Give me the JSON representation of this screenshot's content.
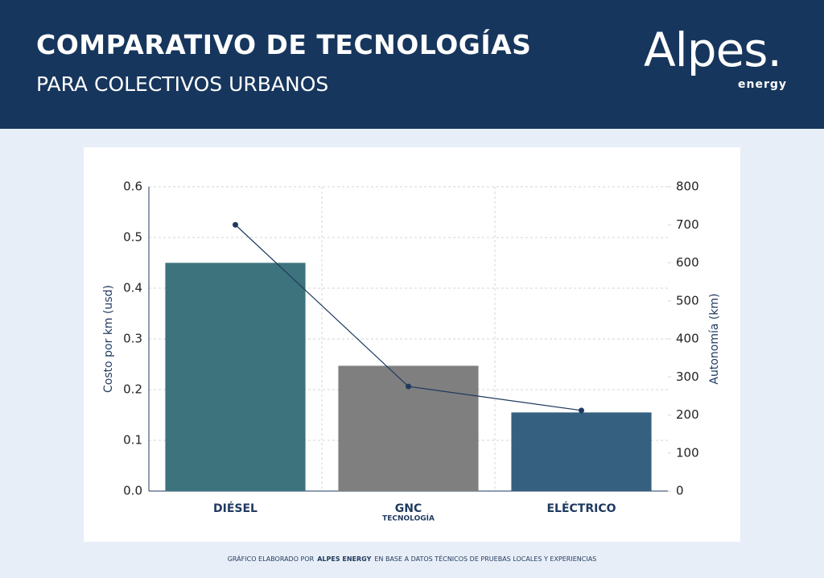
{
  "header": {
    "title": "COMPARATIVO DE TECNOLOGÍAS",
    "subtitle": "PARA COLECTIVOS URBANOS",
    "logo": "Alpes.",
    "logo_sub": "energy"
  },
  "footer": [
    "GRÁFICO ELABORADO POR",
    "ALPES ENERGY",
    "EN BASE A DATOS TÉCNICOS DE PRUEBAS LOCALES Y EXPERIENCIAS"
  ],
  "chart_data": {
    "type": "bar",
    "categories": [
      "DIÉSEL",
      "GNC",
      "ELÉCTRICO"
    ],
    "x_label": "TECNOLOGÍA",
    "y_label": "Costo por km (usd)",
    "y2_label": "Autonomía (km)",
    "series": [
      {
        "type": "bar",
        "colors": [
          "#3d737c",
          "#7f7f7f",
          "#35607f"
        ],
        "values": [
          0.45,
          0.247,
          0.155
        ]
      },
      {
        "type": "line",
        "axis": "y2",
        "color": "#1f3a5f",
        "values": [
          700,
          275,
          212
        ]
      }
    ],
    "ylim": [
      0,
      0.6
    ],
    "yticks": [
      {
        "value": 0,
        "label": "0.0"
      },
      0.1,
      0.2,
      0.3,
      0.4,
      0.5,
      0.6
    ],
    "y2lim": [
      0,
      800
    ],
    "y2ticks": [
      0,
      100,
      200,
      300,
      400,
      500,
      600,
      700,
      800
    ],
    "grid": true
  }
}
